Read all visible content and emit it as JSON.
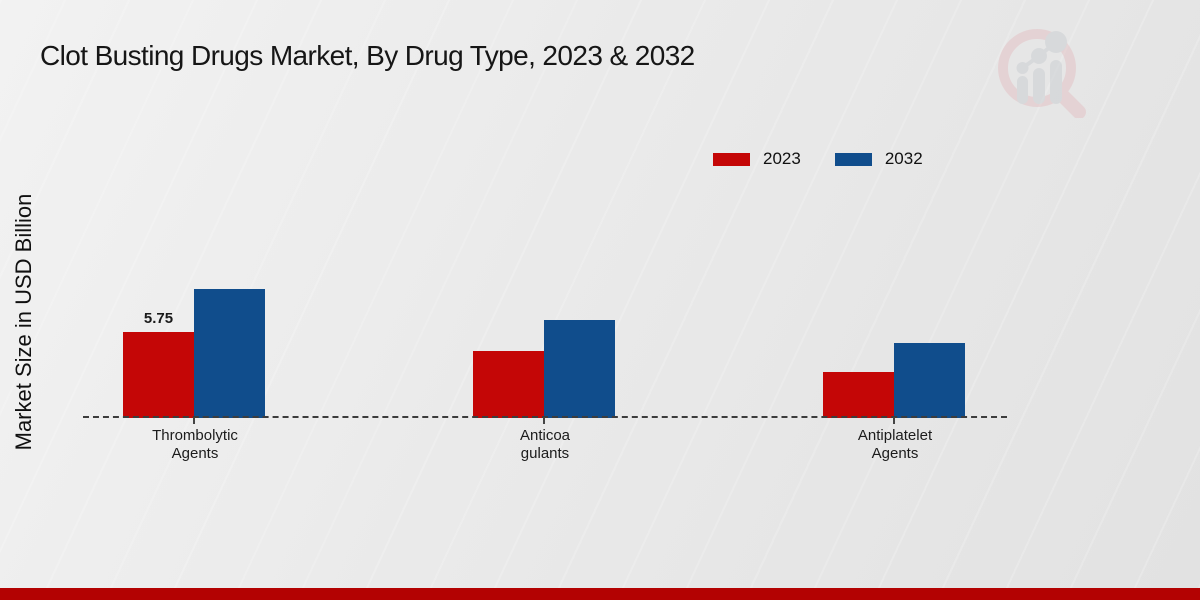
{
  "header": {
    "title": "Clot Busting Drugs Market, By Drug Type, 2023 & 2032"
  },
  "axes": {
    "ylabel": "Market Size in USD Billion"
  },
  "legend": {
    "items": [
      {
        "label": "2023",
        "color": "#c40606"
      },
      {
        "label": "2032",
        "color": "#104d8c"
      }
    ]
  },
  "chart_data": {
    "type": "bar",
    "title": "Clot Busting Drugs Market, By Drug Type, 2023 & 2032",
    "ylabel": "Market Size in USD Billion",
    "xlabel": "",
    "categories": [
      "Thrombolytic\nAgents",
      "Anticoa\ngulants",
      "Antiplatelet\nAgents"
    ],
    "series": [
      {
        "name": "2023",
        "color": "#c40606",
        "values": [
          5.75,
          4.5,
          3.05
        ]
      },
      {
        "name": "2032",
        "color": "#104d8c",
        "values": [
          8.6,
          6.55,
          5.0
        ]
      }
    ],
    "annotations": [
      {
        "series": "2023",
        "category": "Thrombolytic Agents",
        "text": "5.75",
        "value": 5.75
      }
    ],
    "baseline_style": "dashed",
    "grid": false,
    "legend_position": "top-right",
    "ylim": [
      0,
      10
    ]
  },
  "branding": {
    "watermark_icon": "magnifier-growth-chart-logo",
    "footer_bar_color": "#b30202",
    "watermark_ring_color": "#e3bcc0",
    "watermark_bar_color": "#c6cacf"
  }
}
